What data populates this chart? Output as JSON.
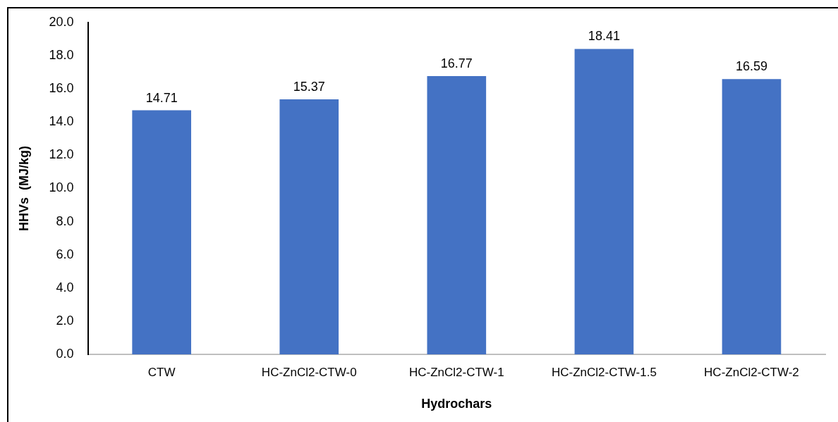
{
  "chart_data": {
    "type": "bar",
    "xlabel": "Hydrochars",
    "ylabel": "HHVs  (MJ/kg)",
    "categories": [
      "CTW",
      "HC-ZnCl2-CTW-0",
      "HC-ZnCl2-CTW-1",
      "HC-ZnCl2-CTW-1.5",
      "HC-ZnCl2-CTW-2"
    ],
    "values": [
      14.71,
      15.37,
      16.77,
      18.41,
      16.59
    ],
    "color": "#4472c4",
    "ylim": [
      0,
      20
    ],
    "yticks": [
      {
        "value": 0,
        "label": "0.0"
      },
      {
        "value": 2,
        "label": "2.0"
      },
      {
        "value": 4,
        "label": "4.0"
      },
      {
        "value": 6,
        "label": "6.0"
      },
      {
        "value": 8,
        "label": "8.0"
      },
      {
        "value": 10,
        "label": "10.0"
      },
      {
        "value": 12,
        "label": "12.0"
      },
      {
        "value": 14,
        "label": "14.0"
      },
      {
        "value": 16,
        "label": "16.0"
      },
      {
        "value": 18,
        "label": "18.0"
      },
      {
        "value": 20,
        "label": "20.0"
      }
    ],
    "grid": false,
    "legend": false,
    "data_labels": true
  }
}
